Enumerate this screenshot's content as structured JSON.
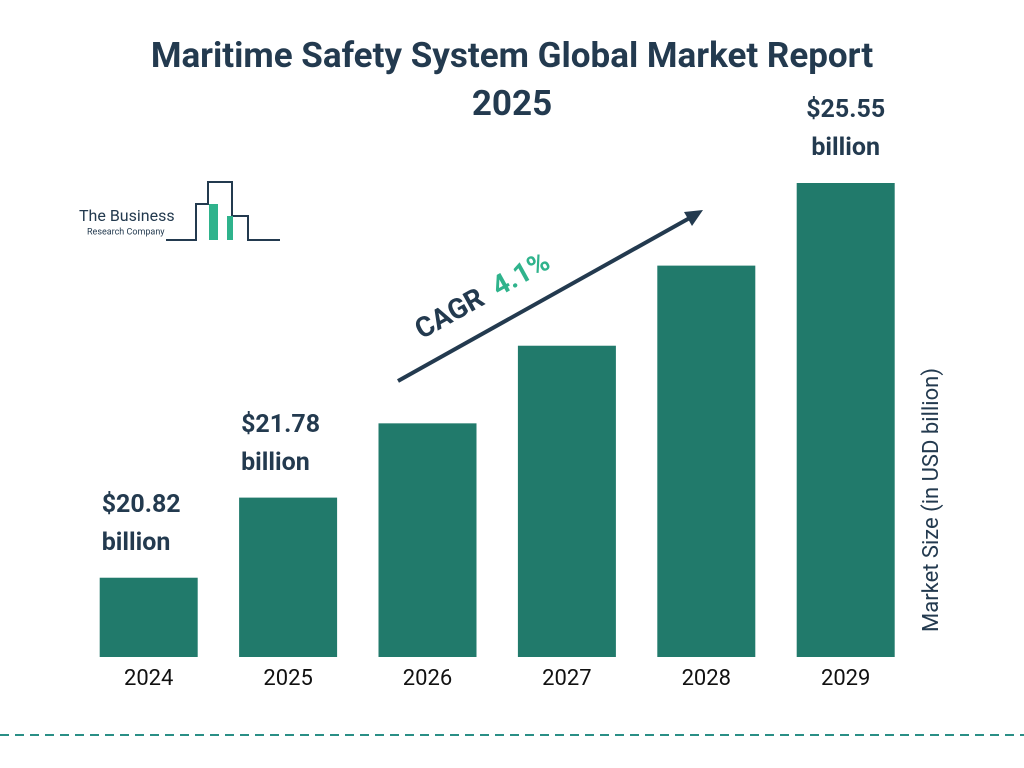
{
  "chart_data": {
    "type": "bar",
    "title": "Maritime Safety System Global Market Report 2025",
    "categories": [
      "2024",
      "2025",
      "2026",
      "2027",
      "2028",
      "2029"
    ],
    "values": [
      20.82,
      21.78,
      22.67,
      23.6,
      24.56,
      25.55
    ],
    "value_labels": [
      "$20.82 billion",
      "$21.78 billion",
      null,
      null,
      null,
      "$25.55 billion"
    ],
    "color": "#217a6b",
    "ylim": [
      19.87,
      25.55
    ],
    "y_axis_label": "Market Size (in USD billion)",
    "cagr_label": "CAGR",
    "cagr_value": "4.1%",
    "logo": {
      "line1": "The Business",
      "line2": "Research Company"
    }
  }
}
